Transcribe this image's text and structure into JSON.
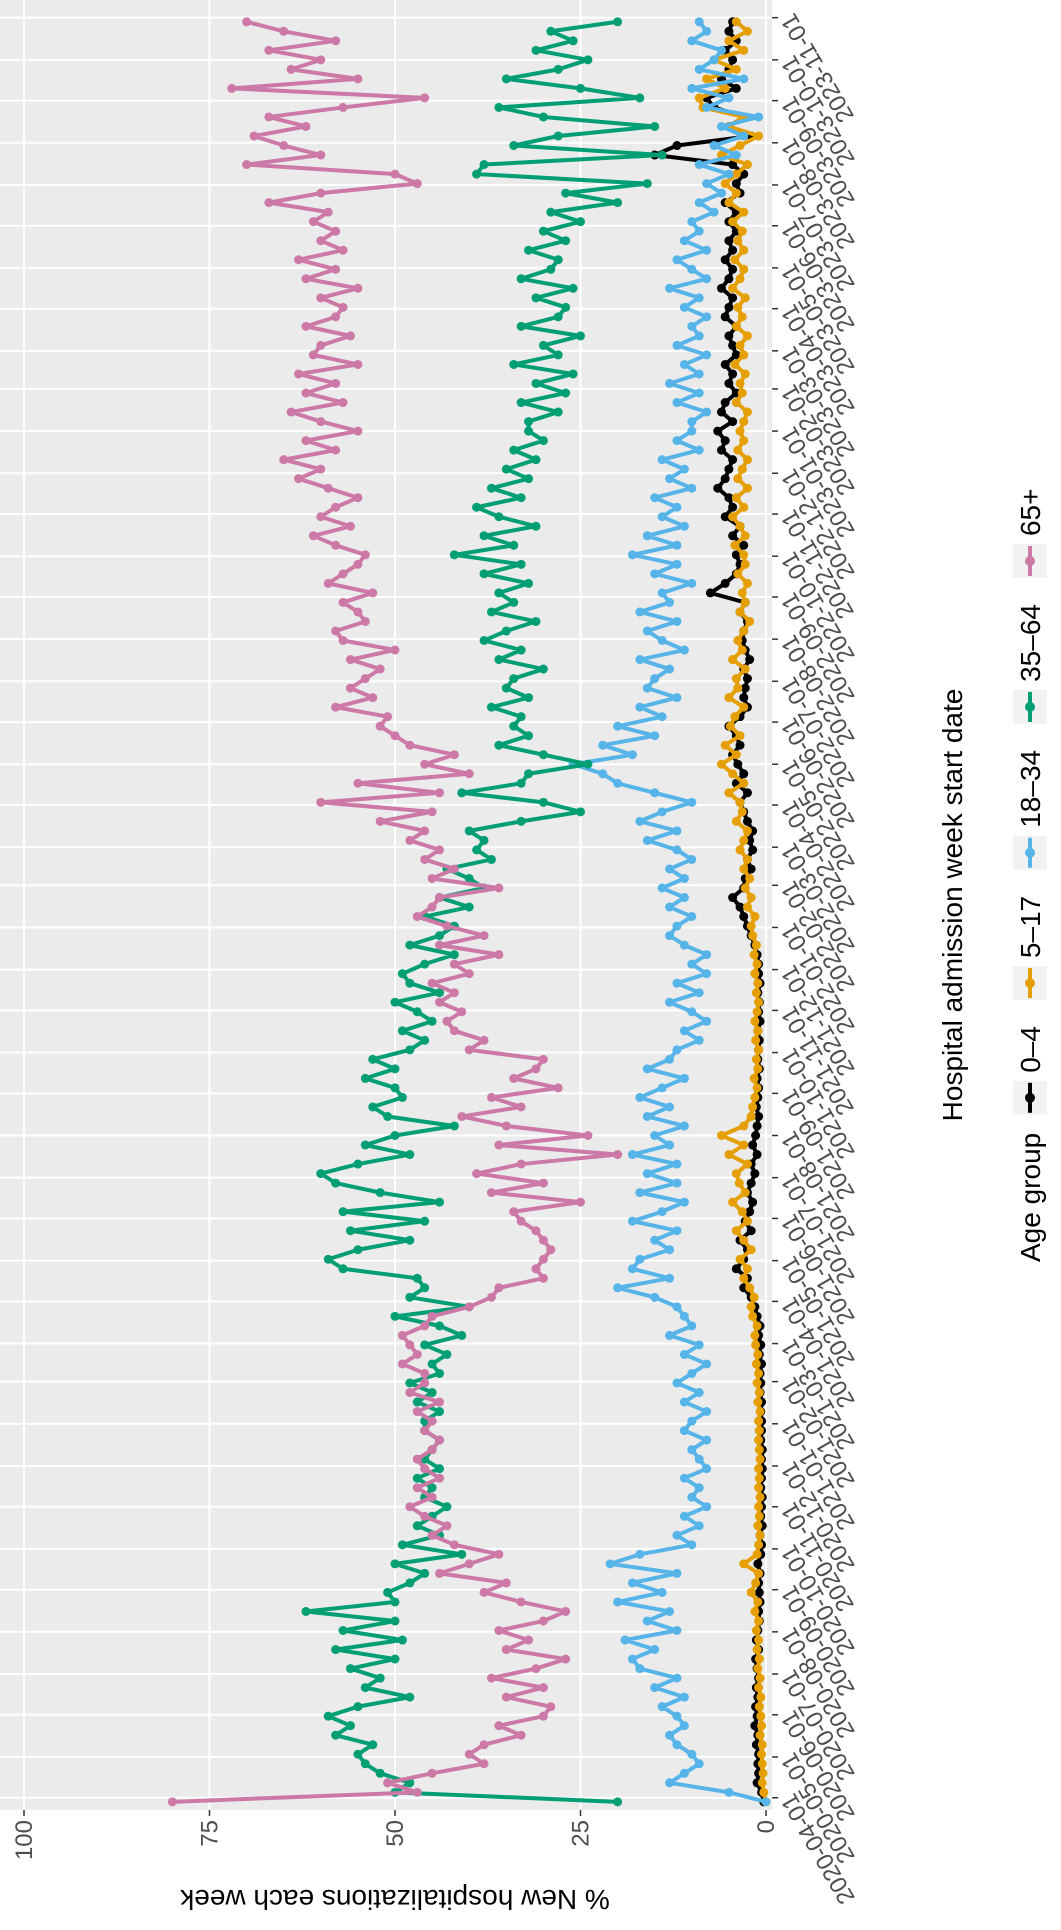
{
  "chart_data": {
    "type": "line",
    "x_label": "Hospital admission week start date",
    "y_label": "% New hospitalizations each week",
    "legend_title": "Age group",
    "legend": "bottom",
    "grid": true,
    "xlim": [
      "2020-03-23",
      "2023-11-14"
    ],
    "xticks": [
      "2020-04-01",
      "2020-05-01",
      "2020-06-01",
      "2020-07-01",
      "2020-08-01",
      "2020-09-01",
      "2020-10-01",
      "2020-11-01",
      "2020-12-01",
      "2021-01-01",
      "2021-02-01",
      "2021-03-01",
      "2021-04-01",
      "2021-05-01",
      "2021-06-01",
      "2021-07-01",
      "2021-08-01",
      "2021-09-01",
      "2021-10-01",
      "2021-11-01",
      "2021-12-01",
      "2022-01-01",
      "2022-02-01",
      "2022-03-01",
      "2022-04-01",
      "2022-05-01",
      "2022-06-01",
      "2022-07-01",
      "2022-08-01",
      "2022-09-01",
      "2022-10-01",
      "2022-11-01",
      "2022-12-01",
      "2023-01-01",
      "2023-02-01",
      "2023-03-01",
      "2023-04-01",
      "2023-05-01",
      "2023-06-01",
      "2023-07-01",
      "2023-08-01",
      "2023-09-01",
      "2023-10-01",
      "2023-11-01"
    ],
    "ylim": [
      0,
      100
    ],
    "yticks": [
      0,
      25,
      50,
      75,
      100
    ],
    "x": [
      "2020-03-29",
      "2020-04-05",
      "2020-04-12",
      "2020-04-19",
      "2020-04-26",
      "2020-05-03",
      "2020-05-10",
      "2020-05-17",
      "2020-05-24",
      "2020-05-31",
      "2020-06-07",
      "2020-06-14",
      "2020-06-21",
      "2020-06-28",
      "2020-07-05",
      "2020-07-12",
      "2020-07-19",
      "2020-07-26",
      "2020-08-02",
      "2020-08-09",
      "2020-08-16",
      "2020-08-23",
      "2020-08-30",
      "2020-09-06",
      "2020-09-13",
      "2020-09-20",
      "2020-09-27",
      "2020-10-04",
      "2020-10-11",
      "2020-10-18",
      "2020-10-25",
      "2020-11-01",
      "2020-11-08",
      "2020-11-15",
      "2020-11-22",
      "2020-11-29",
      "2020-12-06",
      "2020-12-13",
      "2020-12-20",
      "2020-12-27",
      "2021-01-03",
      "2021-01-10",
      "2021-01-17",
      "2021-01-24",
      "2021-01-31",
      "2021-02-07",
      "2021-02-14",
      "2021-02-21",
      "2021-02-28",
      "2021-03-07",
      "2021-03-14",
      "2021-03-21",
      "2021-03-28",
      "2021-04-04",
      "2021-04-11",
      "2021-04-18",
      "2021-04-25",
      "2021-05-02",
      "2021-05-09",
      "2021-05-16",
      "2021-05-23",
      "2021-05-30",
      "2021-06-06",
      "2021-06-13",
      "2021-06-20",
      "2021-06-27",
      "2021-07-04",
      "2021-07-11",
      "2021-07-18",
      "2021-07-25",
      "2021-08-01",
      "2021-08-08",
      "2021-08-15",
      "2021-08-22",
      "2021-08-29",
      "2021-09-05",
      "2021-09-12",
      "2021-09-19",
      "2021-09-26",
      "2021-10-03",
      "2021-10-10",
      "2021-10-17",
      "2021-10-24",
      "2021-10-31",
      "2021-11-07",
      "2021-11-14",
      "2021-11-21",
      "2021-11-28",
      "2021-12-05",
      "2021-12-12",
      "2021-12-19",
      "2021-12-26",
      "2022-01-02",
      "2022-01-09",
      "2022-01-16",
      "2022-01-23",
      "2022-01-30",
      "2022-02-06",
      "2022-02-13",
      "2022-02-20",
      "2022-02-27",
      "2022-03-06",
      "2022-03-13",
      "2022-03-20",
      "2022-03-27",
      "2022-04-03",
      "2022-04-10",
      "2022-04-17",
      "2022-04-24",
      "2022-05-01",
      "2022-05-08",
      "2022-05-15",
      "2022-05-22",
      "2022-05-29",
      "2022-06-05",
      "2022-06-12",
      "2022-06-19",
      "2022-06-26",
      "2022-07-03",
      "2022-07-10",
      "2022-07-17",
      "2022-07-24",
      "2022-07-31",
      "2022-08-07",
      "2022-08-14",
      "2022-08-21",
      "2022-08-28",
      "2022-09-04",
      "2022-09-11",
      "2022-09-18",
      "2022-09-25",
      "2022-10-02",
      "2022-10-09",
      "2022-10-16",
      "2022-10-23",
      "2022-10-30",
      "2022-11-06",
      "2022-11-13",
      "2022-11-20",
      "2022-11-27",
      "2022-12-04",
      "2022-12-11",
      "2022-12-18",
      "2022-12-25",
      "2023-01-01",
      "2023-01-08",
      "2023-01-15",
      "2023-01-22",
      "2023-01-29",
      "2023-02-05",
      "2023-02-12",
      "2023-02-19",
      "2023-02-26",
      "2023-03-05",
      "2023-03-12",
      "2023-03-19",
      "2023-03-26",
      "2023-04-02",
      "2023-04-09",
      "2023-04-16",
      "2023-04-23",
      "2023-04-30",
      "2023-05-07",
      "2023-05-14",
      "2023-05-21",
      "2023-05-28",
      "2023-06-04",
      "2023-06-11",
      "2023-06-18",
      "2023-06-25",
      "2023-07-02",
      "2023-07-09",
      "2023-07-16",
      "2023-07-23",
      "2023-07-30",
      "2023-08-06",
      "2023-08-13",
      "2023-08-20",
      "2023-08-27",
      "2023-09-03",
      "2023-09-10",
      "2023-09-17",
      "2023-09-24",
      "2023-10-01",
      "2023-10-08",
      "2023-10-15",
      "2023-10-22",
      "2023-10-29"
    ],
    "series": [
      {
        "name": "0–4",
        "color": "#000000",
        "values": [
          0.3,
          0.6,
          1.2,
          1.0,
          1.1,
          1.0,
          1.3,
          1.1,
          1.5,
          1.2,
          1.4,
          1.1,
          1.3,
          1.0,
          1.2,
          1.4,
          1.0,
          1.3,
          1.1,
          0.9,
          1.0,
          0.8,
          0.9,
          1.0,
          0.8,
          1.1,
          0.7,
          0.6,
          0.8,
          0.5,
          0.7,
          0.6,
          0.5,
          0.7,
          0.6,
          0.5,
          0.6,
          0.5,
          0.7,
          0.6,
          0.6,
          0.7,
          0.6,
          0.8,
          0.7,
          0.8,
          0.6,
          0.9,
          0.7,
          1.0,
          0.8,
          1.2,
          1.5,
          2.0,
          3.0,
          2.5,
          4.0,
          3.0,
          2.5,
          3.5,
          2.0,
          2.8,
          2.2,
          1.8,
          2.5,
          2.0,
          1.5,
          2.0,
          1.2,
          1.8,
          1.4,
          1.2,
          1.0,
          1.3,
          1.1,
          1.0,
          1.2,
          0.9,
          1.1,
          1.0,
          0.9,
          1.1,
          0.8,
          1.0,
          0.9,
          1.1,
          0.8,
          1.0,
          1.0,
          1.2,
          1.5,
          2.0,
          2.5,
          3.0,
          3.5,
          4.5,
          3.0,
          2.8,
          2.0,
          2.5,
          1.8,
          2.2,
          1.8,
          2.5,
          3.0,
          3.5,
          2.5,
          4.0,
          3.0,
          3.8,
          4.5,
          3.5,
          4.0,
          5.0,
          3.5,
          2.5,
          3.0,
          2.8,
          2.5,
          3.0,
          2.2,
          2.8,
          3.2,
          3.0,
          2.5,
          3.5,
          2.8,
          7.5,
          5.5,
          4.0,
          3.5,
          4.0,
          3.0,
          4.5,
          3.5,
          5.5,
          4.5,
          5.0,
          6.5,
          5.5,
          5.0,
          4.5,
          6.0,
          5.5,
          6.5,
          4.5,
          6.0,
          5.5,
          4.0,
          5.0,
          4.5,
          5.5,
          4.0,
          4.5,
          5.0,
          4.0,
          5.5,
          5.0,
          4.5,
          6.0,
          5.0,
          4.5,
          5.5,
          4.5,
          5.0,
          4.0,
          5.0,
          4.0,
          5.5,
          3.5,
          4.0,
          3.0,
          4.5,
          15.0,
          12.0,
          2.0,
          5.0,
          3.0,
          7.0,
          8.0,
          4.0,
          6.0,
          5.0,
          4.5,
          5.5,
          4.0,
          5.0,
          4.5
        ]
      },
      {
        "name": "5–17",
        "color": "#E69F00",
        "values": [
          0,
          0.3,
          0.5,
          0.4,
          0.5,
          0.6,
          0.5,
          0.8,
          0.6,
          0.7,
          0.9,
          0.7,
          1.0,
          0.8,
          1.1,
          0.9,
          1.2,
          1.0,
          1.3,
          1.0,
          1.5,
          1.1,
          2.0,
          1.4,
          1.0,
          3.0,
          1.2,
          1.0,
          0.8,
          1.1,
          0.9,
          1.0,
          0.8,
          1.0,
          0.9,
          1.0,
          0.8,
          0.9,
          1.0,
          0.9,
          1.0,
          0.8,
          1.1,
          0.9,
          1.2,
          1.0,
          1.3,
          1.1,
          1.4,
          1.5,
          1.2,
          1.8,
          2.0,
          1.6,
          2.2,
          3.0,
          2.5,
          3.5,
          2.0,
          3.0,
          4.0,
          2.5,
          3.2,
          4.5,
          2.8,
          3.6,
          4.0,
          2.5,
          5.0,
          3.0,
          6.0,
          3.0,
          2.0,
          1.8,
          1.5,
          1.2,
          1.6,
          1.1,
          1.3,
          1.0,
          1.4,
          1.1,
          1.5,
          1.2,
          1.0,
          1.3,
          1.1,
          1.5,
          1.2,
          1.6,
          1.3,
          1.8,
          2.0,
          1.5,
          2.5,
          2.0,
          2.8,
          2.2,
          3.0,
          2.5,
          3.5,
          3.0,
          2.5,
          4.0,
          3.2,
          3.5,
          5.0,
          3.0,
          4.5,
          6.0,
          4.0,
          5.5,
          3.5,
          4.8,
          4.2,
          3.0,
          5.0,
          3.8,
          4.0,
          2.8,
          4.5,
          3.2,
          3.8,
          3.0,
          2.2,
          3.5,
          2.8,
          3.2,
          2.5,
          3.8,
          2.8,
          3.0,
          4.2,
          2.8,
          3.5,
          4.5,
          3.0,
          4.0,
          2.5,
          3.8,
          3.2,
          2.5,
          3.8,
          3.0,
          3.5,
          3.0,
          2.5,
          4.0,
          3.2,
          3.5,
          2.8,
          4.2,
          3.0,
          3.5,
          2.5,
          4.0,
          3.2,
          3.8,
          2.8,
          4.5,
          3.5,
          3.0,
          4.2,
          3.0,
          3.8,
          3.2,
          4.5,
          3.0,
          5.0,
          4.0,
          5.5,
          4.0,
          2.5,
          6.0,
          3.5,
          1.0,
          5.0,
          3.0,
          8.5,
          9.0,
          5.5,
          8.0,
          4.0,
          7.0,
          3.0,
          5.0,
          2.5,
          4.0
        ]
      },
      {
        "name": "18–34",
        "color": "#56B4E9",
        "values": [
          0,
          5,
          13,
          11,
          9,
          10,
          12,
          13,
          11,
          12,
          14,
          11,
          15,
          12,
          17,
          18,
          15,
          19,
          12,
          16,
          13,
          20,
          14,
          18,
          12,
          21,
          17,
          10,
          12,
          9,
          11,
          8,
          10,
          9,
          11,
          8,
          9,
          10,
          8,
          11,
          10,
          8,
          11,
          9,
          12,
          10,
          8,
          11,
          9,
          13,
          10,
          11,
          12,
          15,
          20,
          13,
          18,
          17,
          13,
          15,
          12,
          18,
          14,
          11,
          17,
          12,
          16,
          12,
          18,
          13,
          15,
          11,
          16,
          13,
          17,
          14,
          11,
          16,
          13,
          12,
          9,
          11,
          8,
          10,
          13,
          9,
          12,
          8,
          10,
          8,
          11,
          13,
          12,
          10,
          13,
          11,
          14,
          11,
          13,
          10,
          12,
          16,
          12,
          17,
          14,
          10,
          15,
          20,
          22,
          26,
          18,
          22,
          15,
          20,
          14,
          17,
          12,
          16,
          15,
          13,
          17,
          11,
          14,
          16,
          12,
          17,
          13,
          14,
          10,
          15,
          12,
          18,
          12,
          16,
          11,
          14,
          12,
          15,
          10,
          13,
          11,
          14,
          9,
          12,
          10,
          10,
          8,
          12,
          9,
          13,
          9,
          11,
          8,
          12,
          9,
          10,
          8,
          11,
          9,
          13,
          8,
          10,
          12,
          8,
          11,
          9,
          10,
          7,
          9,
          6,
          8,
          5,
          9,
          4,
          7,
          3,
          6,
          1,
          8,
          5,
          10,
          3,
          9,
          7,
          6,
          10,
          8,
          9
        ]
      },
      {
        "name": "35–64",
        "color": "#009E73",
        "values": [
          20,
          50,
          48,
          52,
          54,
          55,
          53,
          58,
          56,
          59,
          55,
          48,
          54,
          52,
          56,
          50,
          58,
          49,
          57,
          50,
          62,
          50,
          51,
          48,
          46,
          50,
          41,
          49,
          44,
          47,
          45,
          43,
          46,
          45,
          47,
          44,
          46,
          45,
          44,
          46,
          46,
          44,
          47,
          45,
          48,
          44,
          45,
          43,
          46,
          41,
          44,
          50,
          40,
          48,
          46,
          47,
          57,
          59,
          55,
          48,
          56,
          46,
          57,
          44,
          52,
          58,
          60,
          55,
          48,
          54,
          50,
          42,
          51,
          53,
          49,
          50,
          54,
          50,
          53,
          48,
          46,
          49,
          45,
          47,
          50,
          44,
          48,
          49,
          46,
          42,
          48,
          44,
          42,
          46,
          40,
          44,
          38,
          40,
          43,
          37,
          39,
          38,
          40,
          33,
          25,
          30,
          41,
          33,
          32,
          24,
          30,
          36,
          32,
          34,
          33,
          37,
          32,
          35,
          34,
          30,
          36,
          33,
          38,
          35,
          31,
          37,
          34,
          36,
          32,
          38,
          33,
          42,
          34,
          38,
          31,
          36,
          39,
          33,
          37,
          32,
          35,
          31,
          34,
          30,
          32,
          32,
          28,
          33,
          27,
          31,
          26,
          34,
          28,
          30,
          25,
          33,
          28,
          27,
          31,
          26,
          33,
          29,
          28,
          32,
          27,
          30,
          25,
          29,
          20,
          27,
          16,
          39,
          38,
          14,
          34,
          28,
          15,
          30,
          36,
          17,
          25,
          35,
          28,
          24,
          31,
          26,
          29,
          20
        ]
      },
      {
        "name": "65+",
        "color": "#CC79A7",
        "values": [
          80,
          47,
          51,
          45,
          38,
          40,
          38,
          33,
          36,
          30,
          29,
          35,
          30,
          37,
          31,
          27,
          35,
          32,
          36,
          30,
          27,
          33,
          38,
          35,
          44,
          40,
          36,
          42,
          45,
          43,
          46,
          48,
          45,
          47,
          44,
          46,
          47,
          45,
          44,
          46,
          45,
          47,
          44,
          48,
          46,
          46,
          49,
          47,
          48,
          49,
          46,
          45,
          40,
          37,
          36,
          30,
          31,
          30,
          29,
          30,
          31,
          33,
          34,
          25,
          37,
          30,
          39,
          33,
          20,
          36,
          24,
          35,
          41,
          33,
          37,
          28,
          34,
          31,
          30,
          40,
          38,
          42,
          43,
          41,
          44,
          42,
          45,
          40,
          42,
          36,
          44,
          38,
          43,
          47,
          45,
          44,
          36,
          45,
          42,
          46,
          44,
          48,
          46,
          52,
          45,
          60,
          44,
          55,
          40,
          46,
          42,
          48,
          50,
          52,
          51,
          58,
          53,
          56,
          54,
          52,
          56,
          50,
          57,
          58,
          54,
          55,
          57,
          53,
          59,
          57,
          55,
          54,
          58,
          61,
          56,
          60,
          58,
          55,
          59,
          63,
          60,
          65,
          58,
          62,
          55,
          60,
          64,
          57,
          62,
          58,
          63,
          55,
          61,
          60,
          56,
          62,
          58,
          57,
          60,
          55,
          62,
          58,
          63,
          57,
          60,
          58,
          61,
          59,
          67,
          60,
          47,
          50,
          70,
          60,
          65,
          69,
          62,
          67,
          57,
          46,
          72,
          55,
          64,
          60,
          67,
          58,
          65,
          70
        ]
      }
    ]
  }
}
